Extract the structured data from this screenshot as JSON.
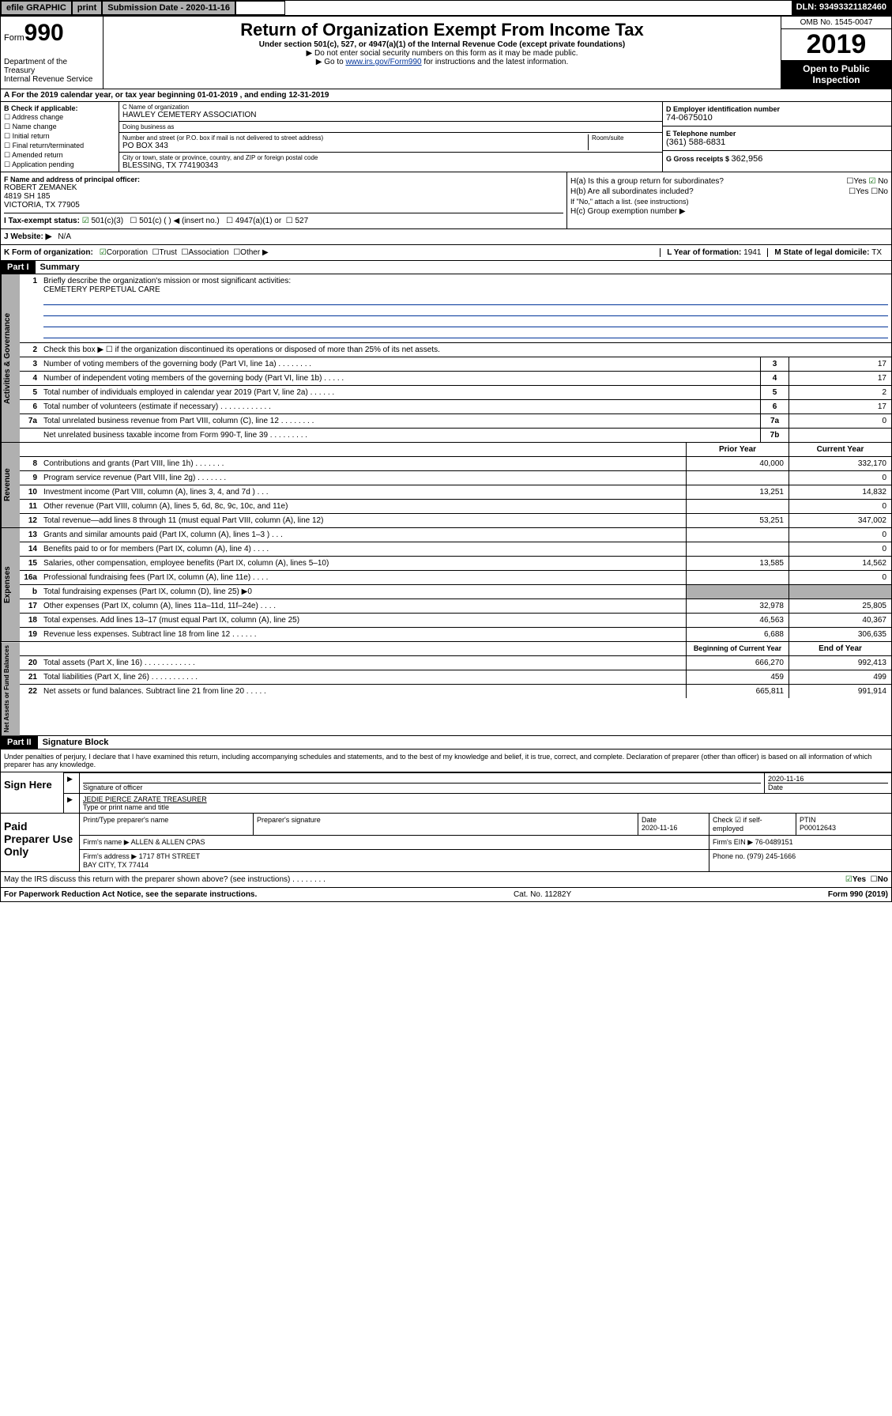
{
  "topbar": {
    "efile": "efile GRAPHIC",
    "print": "print",
    "sub_lbl": "Submission Date - ",
    "sub_val": "2020-11-16",
    "dln_lbl": "DLN: ",
    "dln_val": "93493321182460"
  },
  "header": {
    "form_word": "Form",
    "form_num": "990",
    "dept": "Department of the Treasury\nInternal Revenue Service",
    "title": "Return of Organization Exempt From Income Tax",
    "sub": "Under section 501(c), 527, or 4947(a)(1) of the Internal Revenue Code (except private foundations)",
    "note1": "▶ Do not enter social security numbers on this form as it may be made public.",
    "note2_pre": "▶ Go to ",
    "note2_link": "www.irs.gov/Form990",
    "note2_post": " for instructions and the latest information.",
    "omb": "OMB No. 1545-0047",
    "year": "2019",
    "open": "Open to Public Inspection"
  },
  "a": {
    "text": "A For the 2019 calendar year, or tax year beginning 01-01-2019   , and ending 12-31-2019"
  },
  "b": {
    "title": "B Check if applicable:",
    "items": [
      "Address change",
      "Name change",
      "Initial return",
      "Final return/terminated",
      "Amended return",
      "Application pending"
    ]
  },
  "c": {
    "name_lbl": "C Name of organization",
    "name": "HAWLEY CEMETERY ASSOCIATION",
    "dba_lbl": "Doing business as",
    "dba": "",
    "addr_lbl": "Number and street (or P.O. box if mail is not delivered to street address)",
    "room_lbl": "Room/suite",
    "addr": "PO BOX 343",
    "city_lbl": "City or town, state or province, country, and ZIP or foreign postal code",
    "city": "BLESSING, TX 774190343"
  },
  "d": {
    "lbl": "D Employer identification number",
    "val": "74-0675010"
  },
  "e": {
    "lbl": "E Telephone number",
    "val": "(361) 588-6831"
  },
  "g": {
    "lbl": "G Gross receipts $ ",
    "val": "362,956"
  },
  "f": {
    "lbl": "F  Name and address of principal officer:",
    "name": "ROBERT ZEMANEK",
    "addr": "4819 SH 185\nVICTORIA, TX  77905"
  },
  "h": {
    "a_lbl": "H(a)  Is this a group return for subordinates?",
    "a_yes": "Yes",
    "a_no": "No",
    "b_lbl": "H(b)  Are all subordinates included?",
    "b_yes": "Yes",
    "b_no": "No",
    "b_note": "If \"No,\" attach a list. (see instructions)",
    "c_lbl": "H(c)  Group exemption number ▶"
  },
  "i": {
    "lbl": "I  Tax-exempt status:",
    "opt1": "501(c)(3)",
    "opt2": "501(c) (   ) ◀ (insert no.)",
    "opt3": "4947(a)(1) or",
    "opt4": "527"
  },
  "j": {
    "lbl": "J  Website: ▶",
    "val": "N/A"
  },
  "k": {
    "lbl": "K Form of organization:",
    "opts": [
      "Corporation",
      "Trust",
      "Association",
      "Other ▶"
    ]
  },
  "l": {
    "lbl": "L Year of formation: ",
    "val": "1941"
  },
  "m": {
    "lbl": "M State of legal domicile: ",
    "val": "TX"
  },
  "part1": {
    "num": "Part I",
    "title": "Summary"
  },
  "summary": {
    "q1": "Briefly describe the organization's mission or most significant activities:",
    "mission": "CEMETERY PERPETUAL CARE",
    "q2": "Check this box ▶ ☐  if the organization discontinued its operations or disposed of more than 25% of its net assets.",
    "rows_gov": [
      {
        "n": "3",
        "d": "Number of voting members of the governing body (Part VI, line 1a)   .    .    .    .    .    .    .    .",
        "c": "3",
        "v": "17"
      },
      {
        "n": "4",
        "d": "Number of independent voting members of the governing body (Part VI, line 1b)   .    .    .    .    .",
        "c": "4",
        "v": "17"
      },
      {
        "n": "5",
        "d": "Total number of individuals employed in calendar year 2019 (Part V, line 2a)   .    .    .    .    .    .",
        "c": "5",
        "v": "2"
      },
      {
        "n": "6",
        "d": "Total number of volunteers (estimate if necessary)   .    .    .    .    .    .    .    .    .    .    .    .",
        "c": "6",
        "v": "17"
      },
      {
        "n": "7a",
        "d": "Total unrelated business revenue from Part VIII, column (C), line 12   .    .    .    .    .    .    .    .",
        "c": "7a",
        "v": "0"
      },
      {
        "n": "",
        "d": "Net unrelated business taxable income from Form 990-T, line 39   .    .    .    .    .    .    .    .    .",
        "c": "7b",
        "v": ""
      }
    ],
    "col_prior": "Prior Year",
    "col_curr": "Current Year",
    "col_beg": "Beginning of Current Year",
    "col_end": "End of Year",
    "rows_rev": [
      {
        "n": "8",
        "d": "Contributions and grants (Part VIII, line 1h)   .    .    .    .    .    .    .",
        "p": "40,000",
        "c": "332,170"
      },
      {
        "n": "9",
        "d": "Program service revenue (Part VIII, line 2g)   .    .    .    .    .    .    .",
        "p": "",
        "c": "0"
      },
      {
        "n": "10",
        "d": "Investment income (Part VIII, column (A), lines 3, 4, and 7d )   .    .    .",
        "p": "13,251",
        "c": "14,832"
      },
      {
        "n": "11",
        "d": "Other revenue (Part VIII, column (A), lines 5, 6d, 8c, 9c, 10c, and 11e)",
        "p": "",
        "c": "0"
      },
      {
        "n": "12",
        "d": "Total revenue—add lines 8 through 11 (must equal Part VIII, column (A), line 12)",
        "p": "53,251",
        "c": "347,002"
      }
    ],
    "rows_exp": [
      {
        "n": "13",
        "d": "Grants and similar amounts paid (Part IX, column (A), lines 1–3 )   .    .    .",
        "p": "",
        "c": "0"
      },
      {
        "n": "14",
        "d": "Benefits paid to or for members (Part IX, column (A), line 4)   .    .    .    .",
        "p": "",
        "c": "0"
      },
      {
        "n": "15",
        "d": "Salaries, other compensation, employee benefits (Part IX, column (A), lines 5–10)",
        "p": "13,585",
        "c": "14,562"
      },
      {
        "n": "16a",
        "d": "Professional fundraising fees (Part IX, column (A), line 11e)   .    .    .    .",
        "p": "",
        "c": "0"
      },
      {
        "n": "b",
        "d": "Total fundraising expenses (Part IX, column (D), line 25) ▶0",
        "p": "—",
        "c": "—"
      },
      {
        "n": "17",
        "d": "Other expenses (Part IX, column (A), lines 11a–11d, 11f–24e)   .    .    .    .",
        "p": "32,978",
        "c": "25,805"
      },
      {
        "n": "18",
        "d": "Total expenses. Add lines 13–17 (must equal Part IX, column (A), line 25)",
        "p": "46,563",
        "c": "40,367"
      },
      {
        "n": "19",
        "d": "Revenue less expenses. Subtract line 18 from line 12   .    .    .    .    .    .",
        "p": "6,688",
        "c": "306,635"
      }
    ],
    "rows_net": [
      {
        "n": "20",
        "d": "Total assets (Part X, line 16)   .    .    .    .    .    .    .    .    .    .    .    .",
        "p": "666,270",
        "c": "992,413"
      },
      {
        "n": "21",
        "d": "Total liabilities (Part X, line 26)   .    .    .    .    .    .    .    .    .    .    .",
        "p": "459",
        "c": "499"
      },
      {
        "n": "22",
        "d": "Net assets or fund balances. Subtract line 21 from line 20   .    .    .    .    .",
        "p": "665,811",
        "c": "991,914"
      }
    ]
  },
  "part2": {
    "num": "Part II",
    "title": "Signature Block"
  },
  "perjury": "Under penalties of perjury, I declare that I have examined this return, including accompanying schedules and statements, and to the best of my knowledge and belief, it is true, correct, and complete. Declaration of preparer (other than officer) is based on all information of which preparer has any knowledge.",
  "sign": {
    "here": "Sign Here",
    "sig_lbl": "Signature of officer",
    "date": "2020-11-16",
    "date_lbl": "Date",
    "name": "JEDIE PIERCE ZARATE  TREASURER",
    "name_lbl": "Type or print name and title"
  },
  "paid": {
    "title": "Paid Preparer Use Only",
    "h1": "Print/Type preparer's name",
    "h2": "Preparer's signature",
    "h3": "Date",
    "h4": "Check ☑ if self-employed",
    "h5": "PTIN",
    "date": "2020-11-16",
    "ptin": "P00012643",
    "firm_lbl": "Firm's name    ▶ ",
    "firm": "ALLEN & ALLEN CPAS",
    "ein_lbl": "Firm's EIN ▶ ",
    "ein": "76-0489151",
    "addr_lbl": "Firm's address ▶ ",
    "addr": "1717 8TH STREET\nBAY CITY, TX  77414",
    "phone_lbl": "Phone no. ",
    "phone": "(979) 245-1666"
  },
  "discuss": {
    "q": "May the IRS discuss this return with the preparer shown above? (see instructions)   .    .    .    .    .    .    .    .",
    "yes": "Yes",
    "no": "No"
  },
  "footer": {
    "left": "For Paperwork Reduction Act Notice, see the separate instructions.",
    "mid": "Cat. No. 11282Y",
    "right": "Form 990 (2019)"
  },
  "tabs": {
    "gov": "Activities & Governance",
    "rev": "Revenue",
    "exp": "Expenses",
    "net": "Net Assets or Fund Balances"
  }
}
